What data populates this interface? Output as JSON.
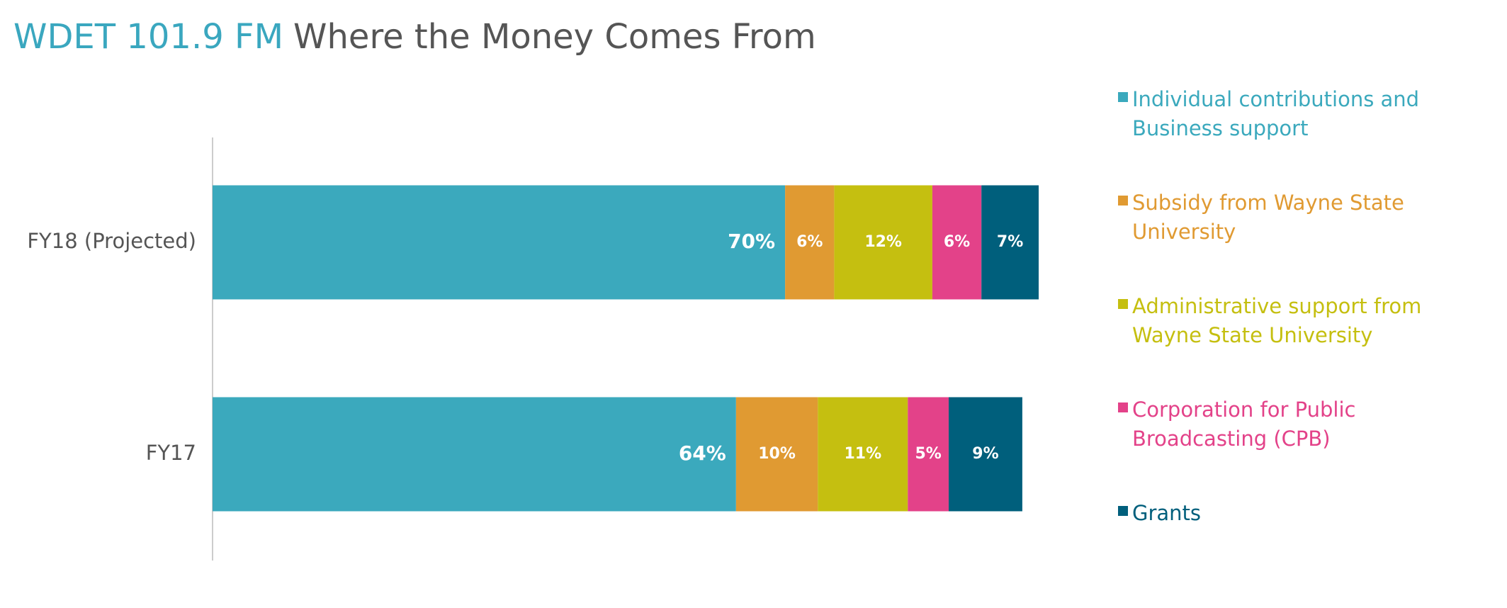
{
  "chart_data": {
    "type": "stacked-bar-horizontal",
    "title": "WDET 101.9 FM",
    "subtitle": "Where the Money Comes From",
    "categories": [
      "FY18 (Projected)",
      "FY17"
    ],
    "series": [
      {
        "name": "Individual contributions and Business support",
        "color": "#3ba9bd",
        "values": [
          70,
          64
        ],
        "value_labels": [
          "70%",
          "64%"
        ]
      },
      {
        "name": "Subsidy from Wayne State University",
        "color": "#e09a32",
        "values": [
          6,
          10
        ],
        "value_labels": [
          "6%",
          "10%"
        ]
      },
      {
        "name": "Administrative support from Wayne State University",
        "color": "#c5bf10",
        "values": [
          12,
          11
        ],
        "value_labels": [
          "12%",
          "11%"
        ]
      },
      {
        "name": "Corporation for Public Broadcasting (CPB)",
        "color": "#e34289",
        "values": [
          6,
          5
        ],
        "value_labels": [
          "6%",
          "5%"
        ]
      },
      {
        "name": "Grants",
        "color": "#005f7c",
        "values": [
          7,
          9
        ],
        "value_labels": [
          "7%",
          "9%"
        ]
      }
    ],
    "legend": "right"
  }
}
